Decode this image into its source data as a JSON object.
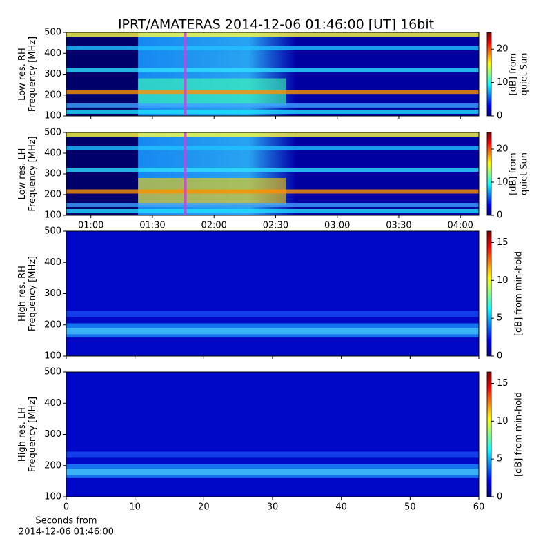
{
  "title": "IPRT/AMATERAS 2014-12-06 01:46:00 [UT]   16bit",
  "chart_data": [
    {
      "type": "heatmap",
      "ylabel": [
        "Low res. RH",
        "Frequency [MHz]"
      ],
      "ylim": [
        100,
        500
      ],
      "yticks": [
        100,
        200,
        300,
        400,
        500
      ],
      "xlim": [
        "00:48",
        "04:09"
      ],
      "xticks": [
        "01:00",
        "01:30",
        "02:00",
        "02:30",
        "03:00",
        "03:30",
        "04:00"
      ],
      "show_xtick_labels": false,
      "marker_x": "01:46",
      "marker_color": "#d040e0",
      "colorbar": {
        "label": [
          "[dB] from",
          "quiet Sun"
        ],
        "lim": [
          0,
          25
        ],
        "ticks": [
          0,
          10,
          20
        ]
      }
    },
    {
      "type": "heatmap",
      "ylabel": [
        "Low res. LH",
        "Frequency [MHz]"
      ],
      "ylim": [
        100,
        500
      ],
      "yticks": [
        100,
        200,
        300,
        400,
        500
      ],
      "xlim": [
        "00:48",
        "04:09"
      ],
      "xticks": [
        "01:00",
        "01:30",
        "02:00",
        "02:30",
        "03:00",
        "03:30",
        "04:00"
      ],
      "show_xtick_labels": true,
      "marker_x": "01:46",
      "marker_color": "#d040e0",
      "colorbar": {
        "label": [
          "[dB] from",
          "quiet Sun"
        ],
        "lim": [
          0,
          25
        ],
        "ticks": [
          0,
          10,
          20
        ]
      }
    },
    {
      "type": "heatmap",
      "ylabel": [
        "High res. RH",
        "Frequency [MHz]"
      ],
      "ylim": [
        100,
        500
      ],
      "yticks": [
        100,
        200,
        300,
        400,
        500
      ],
      "xlim": [
        0,
        60
      ],
      "xticks": [
        0,
        10,
        20,
        30,
        40,
        50,
        60
      ],
      "show_xtick_labels": false,
      "colorbar": {
        "label": [
          "[dB] from min-hold"
        ],
        "lim": [
          0,
          16.5
        ],
        "ticks": [
          0,
          5,
          10,
          15
        ]
      }
    },
    {
      "type": "heatmap",
      "ylabel": [
        "High res. LH",
        "Frequency [MHz]"
      ],
      "ylim": [
        100,
        500
      ],
      "yticks": [
        100,
        200,
        300,
        400,
        500
      ],
      "xlim": [
        0,
        60
      ],
      "xticks": [
        0,
        10,
        20,
        30,
        40,
        50,
        60
      ],
      "show_xtick_labels": true,
      "xlabel": [
        "Seconds from",
        "2014-12-06 01:46:00"
      ],
      "colorbar": {
        "label": [
          "[dB] from min-hold"
        ],
        "lim": [
          0,
          16.5
        ],
        "ticks": [
          0,
          5,
          10,
          15
        ]
      }
    }
  ]
}
